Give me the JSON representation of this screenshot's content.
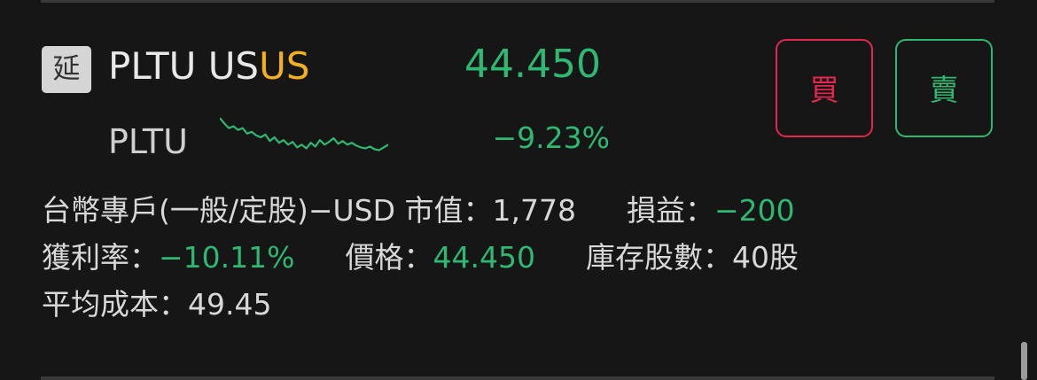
{
  "stock": {
    "delay_badge": "延",
    "symbol": "PLTU US",
    "market_tag": "US",
    "name": "PLTU",
    "price": "44.450",
    "change_pct": "−9.23%",
    "trend": "down",
    "sparkline": [
      0.08,
      0.2,
      0.3,
      0.26,
      0.34,
      0.3,
      0.42,
      0.38,
      0.46,
      0.5,
      0.44,
      0.58,
      0.5,
      0.62,
      0.56,
      0.66,
      0.6,
      0.72,
      0.66,
      0.74,
      0.62,
      0.7,
      0.56,
      0.66,
      0.6,
      0.52,
      0.64,
      0.58,
      0.66,
      0.62,
      0.68,
      0.72,
      0.74,
      0.7,
      0.76,
      0.78,
      0.72,
      0.66
    ]
  },
  "actions": {
    "buy_label": "買",
    "sell_label": "賣"
  },
  "details": {
    "account_label": "台幣專戶(一般/定股)−USD",
    "market_value_label": "市值：",
    "market_value": "1,778",
    "pnl_label": "損益：",
    "pnl": "−200",
    "return_label": "獲利率：",
    "return_value": "−10.11%",
    "price_label": "價格：",
    "price_value": "44.450",
    "shares_label": "庫存股數：",
    "shares_value": "40股",
    "avg_cost_label": "平均成本：",
    "avg_cost_value": "49.45"
  },
  "colors": {
    "up_down_green": "#2eb872",
    "buy_red": "#e5264f",
    "market_tag_orange": "#f2b01e",
    "background": "#161616"
  }
}
